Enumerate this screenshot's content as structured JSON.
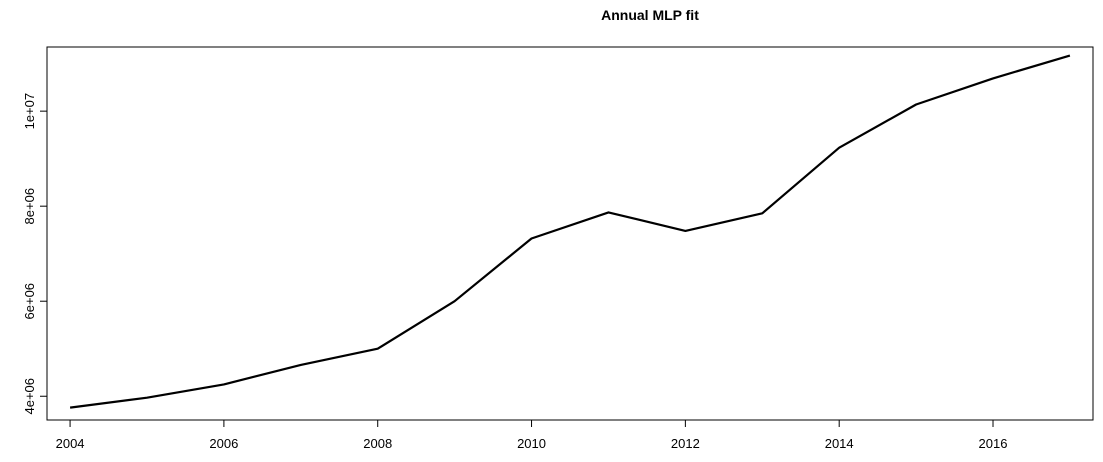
{
  "chart_data": {
    "type": "line",
    "title": "Annual MLP fit",
    "xlabel": "",
    "ylabel": "",
    "xlim": [
      2003.7,
      2017.3
    ],
    "ylim": [
      3500000,
      11350000
    ],
    "x_ticks": [
      2004,
      2006,
      2008,
      2010,
      2012,
      2014,
      2016
    ],
    "x_tick_labels": [
      "2004",
      "2006",
      "2008",
      "2010",
      "2012",
      "2014",
      "2016"
    ],
    "y_ticks": [
      4000000,
      6000000,
      8000000,
      10000000
    ],
    "y_tick_labels": [
      "4e+06",
      "6e+06",
      "8e+06",
      "1e+07"
    ],
    "grid": false,
    "legend": "none",
    "series": [
      {
        "x": [
          2004,
          2005,
          2006,
          2007,
          2008,
          2009,
          2010,
          2011,
          2012,
          2013,
          2014,
          2015,
          2016,
          2017
        ],
        "values": [
          3760000,
          3970000,
          4250000,
          4660000,
          5000000,
          6000000,
          7320000,
          7870000,
          7480000,
          7850000,
          9230000,
          10140000,
          10690000,
          11170000
        ],
        "color": "#000000"
      }
    ]
  }
}
